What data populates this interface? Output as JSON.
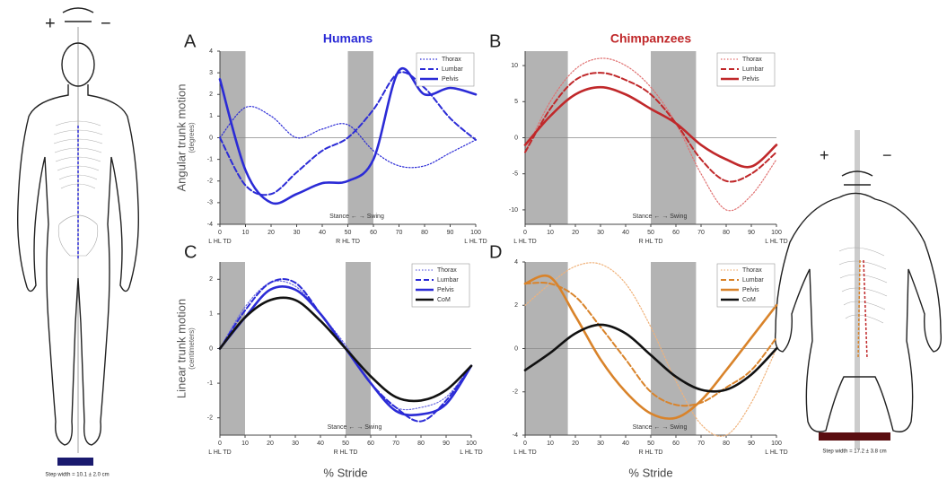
{
  "chart_data": [
    {
      "type": "line",
      "label": "A",
      "title": "Humans",
      "title_color": "#2b2bd6",
      "ylabel": [
        "Angular trunk motion",
        "(degrees)"
      ],
      "x": [
        0,
        10,
        20,
        30,
        40,
        50,
        60,
        70,
        80,
        90,
        100
      ],
      "xlim": [
        0,
        100
      ],
      "xticks": [
        0,
        10,
        20,
        30,
        40,
        50,
        60,
        70,
        80,
        90,
        100
      ],
      "ylim": [
        -4,
        4
      ],
      "yticks": [
        -4,
        -3,
        -2,
        -1,
        0,
        1,
        2,
        3,
        4
      ],
      "shaded": [
        [
          0,
          10
        ],
        [
          50,
          60
        ]
      ],
      "zero_line": true,
      "legend": "upper right",
      "events": [
        {
          "x": 0,
          "label": "L HL TD"
        },
        {
          "x": 50,
          "label": "R HL TD"
        },
        {
          "x": 100,
          "label": "L HL TD"
        }
      ],
      "annotation": "Stance ← → Swing",
      "series": [
        {
          "name": "Thorax",
          "color": "#2b2bd6",
          "style": "dotted",
          "values": [
            0,
            1.4,
            1.0,
            0.0,
            0.4,
            0.6,
            -0.6,
            -1.3,
            -1.3,
            -0.7,
            -0.1
          ]
        },
        {
          "name": "Lumbar",
          "color": "#2b2bd6",
          "style": "dashed",
          "values": [
            0,
            -2.2,
            -2.6,
            -1.6,
            -0.6,
            0.0,
            1.3,
            3.0,
            2.3,
            0.9,
            -0.1
          ]
        },
        {
          "name": "Pelvis",
          "color": "#2b2bd6",
          "style": "solid",
          "values": [
            2.7,
            -1.5,
            -3.0,
            -2.6,
            -2.1,
            -2.0,
            -1.0,
            3.1,
            2.0,
            2.3,
            2.0
          ]
        }
      ]
    },
    {
      "type": "line",
      "label": "B",
      "title": "Chimpanzees",
      "title_color": "#c0282a",
      "x": [
        0,
        10,
        20,
        30,
        40,
        50,
        60,
        70,
        80,
        90,
        100
      ],
      "xlim": [
        0,
        100
      ],
      "xticks": [
        0,
        10,
        20,
        30,
        40,
        50,
        60,
        70,
        80,
        90,
        100
      ],
      "ylim": [
        -12,
        12
      ],
      "yticks": [
        -10,
        -5,
        0,
        5,
        10
      ],
      "shaded": [
        [
          0,
          17
        ],
        [
          50,
          68
        ]
      ],
      "zero_line": true,
      "legend": "upper right",
      "events": [
        {
          "x": 0,
          "label": "L HL TD"
        },
        {
          "x": 50,
          "label": "R HL TD"
        },
        {
          "x": 100,
          "label": "L HL TD"
        }
      ],
      "annotation": "Stance ← → Swing",
      "series": [
        {
          "name": "Thorax",
          "color": "#e07070",
          "style": "dotted",
          "values": [
            -2,
            5,
            9.5,
            11,
            10,
            7,
            2,
            -5,
            -10,
            -8,
            -3
          ]
        },
        {
          "name": "Lumbar",
          "color": "#c0282a",
          "style": "dashed",
          "values": [
            -2,
            4,
            8,
            9,
            8,
            6,
            2,
            -3,
            -6,
            -5,
            -2
          ]
        },
        {
          "name": "Pelvis",
          "color": "#c0282a",
          "style": "solid",
          "values": [
            -1,
            3,
            6,
            7,
            6,
            4,
            2,
            -1,
            -3,
            -4,
            -1
          ]
        }
      ]
    },
    {
      "type": "line",
      "label": "C",
      "ylabel": [
        "Linear trunk motion",
        "(centimeters)"
      ],
      "xlabel": "% Stride",
      "x": [
        0,
        10,
        20,
        30,
        40,
        50,
        60,
        70,
        80,
        90,
        100
      ],
      "xlim": [
        0,
        100
      ],
      "xticks": [
        0,
        10,
        20,
        30,
        40,
        50,
        60,
        70,
        80,
        90,
        100
      ],
      "ylim": [
        -2.5,
        2.5
      ],
      "yticks": [
        -2,
        -1,
        0,
        1,
        2
      ],
      "shaded": [
        [
          0,
          10
        ],
        [
          50,
          60
        ]
      ],
      "zero_line": true,
      "legend": "upper right",
      "events": [
        {
          "x": 0,
          "label": "L HL TD"
        },
        {
          "x": 50,
          "label": "R HL TD"
        },
        {
          "x": 100,
          "label": "L HL TD"
        }
      ],
      "annotation": "Stance ← → Swing",
      "series": [
        {
          "name": "Thorax",
          "color": "#6a6ae0",
          "style": "dotted",
          "values": [
            0,
            1.2,
            1.9,
            1.8,
            1.0,
            0.1,
            -1.0,
            -1.7,
            -1.7,
            -1.4,
            -0.5
          ]
        },
        {
          "name": "Lumbar",
          "color": "#2b2bd6",
          "style": "dashed",
          "values": [
            0,
            1.1,
            1.9,
            1.9,
            1.0,
            0.0,
            -1.0,
            -1.7,
            -2.1,
            -1.5,
            -0.5
          ]
        },
        {
          "name": "Pelvis",
          "color": "#2b2bd6",
          "style": "solid",
          "values": [
            0,
            0.9,
            1.7,
            1.7,
            1.0,
            0.0,
            -1.0,
            -1.8,
            -1.9,
            -1.6,
            -0.5
          ]
        },
        {
          "name": "CoM",
          "color": "#111111",
          "style": "solid",
          "values": [
            0,
            0.9,
            1.4,
            1.4,
            0.8,
            0.0,
            -0.8,
            -1.4,
            -1.5,
            -1.2,
            -0.5
          ]
        }
      ]
    },
    {
      "type": "line",
      "label": "D",
      "xlabel": "% Stride",
      "x": [
        0,
        10,
        20,
        30,
        40,
        50,
        60,
        70,
        80,
        90,
        100
      ],
      "xlim": [
        0,
        100
      ],
      "xticks": [
        0,
        10,
        20,
        30,
        40,
        50,
        60,
        70,
        80,
        90,
        100
      ],
      "ylim": [
        -4,
        4
      ],
      "yticks": [
        -4,
        -2,
        0,
        2,
        4
      ],
      "shaded": [
        [
          0,
          17
        ],
        [
          50,
          68
        ]
      ],
      "zero_line": true,
      "legend": "upper right",
      "events": [
        {
          "x": 0,
          "label": "L HL TD"
        },
        {
          "x": 50,
          "label": "R HL TD"
        },
        {
          "x": 100,
          "label": "L HL TD"
        }
      ],
      "annotation": "Stance ← → Swing",
      "series": [
        {
          "name": "Thorax",
          "color": "#f0b27a",
          "style": "dotted",
          "values": [
            2,
            3,
            3.8,
            3.9,
            3.0,
            1.0,
            -1.5,
            -3.5,
            -4.0,
            -2.5,
            0
          ]
        },
        {
          "name": "Lumbar",
          "color": "#d9832a",
          "style": "dashed",
          "values": [
            3,
            3,
            2.4,
            1.0,
            -0.5,
            -2.0,
            -2.6,
            -2.5,
            -1.8,
            -1.0,
            0.5
          ]
        },
        {
          "name": "Pelvis",
          "color": "#d9832a",
          "style": "solid",
          "values": [
            3,
            3.3,
            1.5,
            -0.5,
            -2.0,
            -3.0,
            -3.2,
            -2.4,
            -1.0,
            0.5,
            2.0
          ]
        },
        {
          "name": "CoM",
          "color": "#111111",
          "style": "solid",
          "values": [
            -1,
            -0.2,
            0.7,
            1.1,
            0.7,
            -0.3,
            -1.3,
            -1.9,
            -1.9,
            -1.2,
            0
          ]
        }
      ]
    }
  ],
  "illustrations": {
    "human": {
      "plus": "+",
      "minus": "−",
      "scale_label": "Step width = 10.1 ± 2.0 cm"
    },
    "chimp": {
      "plus": "+",
      "minus": "−",
      "scale_label": "Step width = 17.2 ± 3.8 cm"
    }
  }
}
